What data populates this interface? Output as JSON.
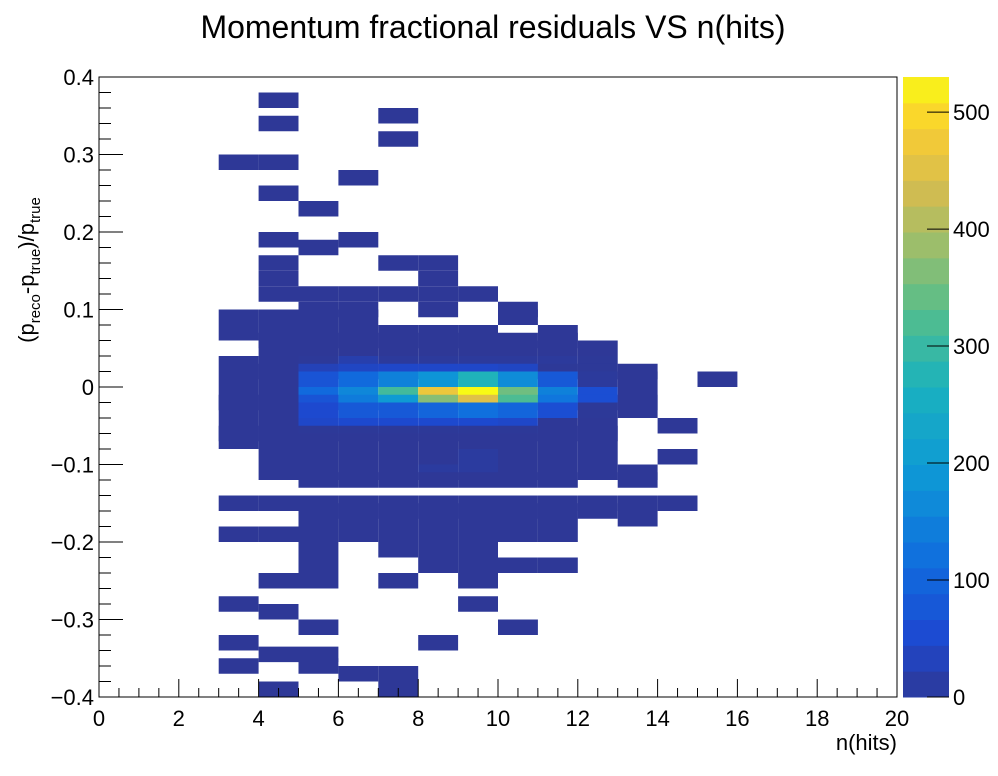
{
  "chart_data": {
    "type": "heatmap",
    "title": "Momentum fractional residuals VS n(hits)",
    "xlabel": "n(hits)",
    "ylabel": {
      "open": "(p",
      "sub1": "reco",
      "mid1": "-p",
      "sub2": "true",
      "mid2": ")/p",
      "sub3": "true"
    },
    "xlim": [
      0,
      20
    ],
    "ylim": [
      -0.4,
      0.4
    ],
    "x_bin_width": 1,
    "y_bin_width": 0.02,
    "x_ticks": [
      "0",
      "2",
      "4",
      "6",
      "8",
      "10",
      "12",
      "14",
      "16",
      "18",
      "20"
    ],
    "y_ticks": [
      "0.4",
      "0.3",
      "0.2",
      "0.1",
      "0",
      "−0.1",
      "−0.2",
      "−0.3",
      "−0.4"
    ],
    "colorbar": {
      "min": 0,
      "max": 530,
      "ticks": [
        "0",
        "100",
        "200",
        "300",
        "400",
        "500"
      ]
    },
    "bins": [
      [
        4,
        0.37,
        1
      ],
      [
        4,
        0.34,
        1
      ],
      [
        7,
        0.35,
        1
      ],
      [
        7,
        0.32,
        1
      ],
      [
        3,
        0.29,
        1
      ],
      [
        4,
        0.29,
        1
      ],
      [
        6,
        0.27,
        1
      ],
      [
        4,
        0.25,
        1
      ],
      [
        5,
        0.23,
        1
      ],
      [
        4,
        0.19,
        1
      ],
      [
        6,
        0.19,
        1
      ],
      [
        5,
        0.18,
        1
      ],
      [
        4,
        0.16,
        1
      ],
      [
        7,
        0.16,
        1
      ],
      [
        8,
        0.16,
        1
      ],
      [
        4,
        0.14,
        1
      ],
      [
        8,
        0.14,
        1
      ],
      [
        4,
        0.12,
        1
      ],
      [
        5,
        0.12,
        1
      ],
      [
        6,
        0.12,
        1
      ],
      [
        7,
        0.12,
        1
      ],
      [
        8,
        0.12,
        1
      ],
      [
        9,
        0.12,
        1
      ],
      [
        5,
        0.1,
        1
      ],
      [
        6,
        0.1,
        1
      ],
      [
        8,
        0.1,
        1
      ],
      [
        10,
        0.1,
        1
      ],
      [
        3,
        0.09,
        1
      ],
      [
        4,
        0.09,
        1
      ],
      [
        5,
        0.09,
        1
      ],
      [
        6,
        0.09,
        1
      ],
      [
        10,
        0.09,
        1
      ],
      [
        3,
        0.07,
        1
      ],
      [
        4,
        0.07,
        1
      ],
      [
        5,
        0.07,
        1
      ],
      [
        6,
        0.07,
        1
      ],
      [
        7,
        0.07,
        1
      ],
      [
        8,
        0.07,
        1
      ],
      [
        9,
        0.07,
        1
      ],
      [
        11,
        0.07,
        1
      ],
      [
        4,
        0.06,
        1
      ],
      [
        5,
        0.06,
        1
      ],
      [
        6,
        0.06,
        1
      ],
      [
        7,
        0.06,
        1
      ],
      [
        8,
        0.06,
        1
      ],
      [
        9,
        0.06,
        1
      ],
      [
        10,
        0.06,
        1
      ],
      [
        11,
        0.06,
        1
      ],
      [
        4,
        0.05,
        1
      ],
      [
        5,
        0.05,
        1
      ],
      [
        6,
        0.05,
        1
      ],
      [
        7,
        0.05,
        1
      ],
      [
        8,
        0.05,
        1
      ],
      [
        9,
        0.05,
        1
      ],
      [
        10,
        0.05,
        1
      ],
      [
        11,
        0.05,
        1
      ],
      [
        12,
        0.05,
        1
      ],
      [
        3,
        0.03,
        1
      ],
      [
        4,
        0.03,
        1
      ],
      [
        5,
        0.03,
        3
      ],
      [
        6,
        0.03,
        20
      ],
      [
        7,
        0.03,
        5
      ],
      [
        8,
        0.03,
        5
      ],
      [
        9,
        0.03,
        5
      ],
      [
        10,
        0.03,
        5
      ],
      [
        11,
        0.03,
        5
      ],
      [
        12,
        0.03,
        2
      ],
      [
        4,
        0.02,
        1
      ],
      [
        5,
        0.02,
        30
      ],
      [
        6,
        0.02,
        40
      ],
      [
        7,
        0.02,
        45
      ],
      [
        8,
        0.02,
        45
      ],
      [
        9,
        0.02,
        45
      ],
      [
        10,
        0.02,
        40
      ],
      [
        11,
        0.02,
        2
      ],
      [
        12,
        0.02,
        2
      ],
      [
        13,
        0.02,
        1
      ],
      [
        3,
        0.01,
        1
      ],
      [
        4,
        0.01,
        1
      ],
      [
        5,
        0.01,
        70
      ],
      [
        6,
        0.01,
        110
      ],
      [
        7,
        0.01,
        150
      ],
      [
        8,
        0.01,
        185
      ],
      [
        9,
        0.01,
        270
      ],
      [
        10,
        0.01,
        170
      ],
      [
        11,
        0.01,
        80
      ],
      [
        12,
        0.01,
        5
      ],
      [
        13,
        0.01,
        1
      ],
      [
        15,
        0.01,
        1
      ],
      [
        3,
        -0.01,
        1
      ],
      [
        4,
        -0.01,
        1
      ],
      [
        5,
        -0.01,
        110
      ],
      [
        6,
        -0.01,
        160
      ],
      [
        7,
        -0.01,
        310
      ],
      [
        8,
        -0.01,
        470
      ],
      [
        9,
        -0.01,
        530
      ],
      [
        10,
        -0.01,
        350
      ],
      [
        11,
        -0.01,
        150
      ],
      [
        12,
        -0.01,
        60
      ],
      [
        13,
        -0.01,
        1
      ],
      [
        3,
        -0.02,
        1
      ],
      [
        4,
        -0.02,
        1
      ],
      [
        5,
        -0.02,
        70
      ],
      [
        6,
        -0.02,
        140
      ],
      [
        7,
        -0.02,
        200
      ],
      [
        8,
        -0.02,
        370
      ],
      [
        9,
        -0.02,
        450
      ],
      [
        10,
        -0.02,
        320
      ],
      [
        11,
        -0.02,
        130
      ],
      [
        12,
        -0.02,
        60
      ],
      [
        13,
        -0.02,
        1
      ],
      [
        3,
        -0.03,
        1
      ],
      [
        4,
        -0.03,
        1
      ],
      [
        5,
        -0.03,
        50
      ],
      [
        6,
        -0.03,
        80
      ],
      [
        7,
        -0.03,
        80
      ],
      [
        8,
        -0.03,
        100
      ],
      [
        9,
        -0.03,
        120
      ],
      [
        10,
        -0.03,
        100
      ],
      [
        11,
        -0.03,
        60
      ],
      [
        12,
        -0.03,
        2
      ],
      [
        13,
        -0.03,
        1
      ],
      [
        3,
        -0.05,
        1
      ],
      [
        4,
        -0.05,
        1
      ],
      [
        5,
        -0.05,
        45
      ],
      [
        6,
        -0.05,
        50
      ],
      [
        7,
        -0.05,
        50
      ],
      [
        8,
        -0.05,
        50
      ],
      [
        9,
        -0.05,
        50
      ],
      [
        10,
        -0.05,
        45
      ],
      [
        11,
        -0.05,
        1
      ],
      [
        12,
        -0.05,
        1
      ],
      [
        14,
        -0.05,
        1
      ],
      [
        3,
        -0.06,
        1
      ],
      [
        4,
        -0.06,
        1
      ],
      [
        5,
        -0.06,
        2
      ],
      [
        6,
        -0.06,
        2
      ],
      [
        7,
        -0.06,
        2
      ],
      [
        8,
        -0.06,
        2
      ],
      [
        9,
        -0.06,
        2
      ],
      [
        10,
        -0.06,
        2
      ],
      [
        11,
        -0.06,
        1
      ],
      [
        12,
        -0.06,
        1
      ],
      [
        3,
        -0.07,
        1
      ],
      [
        4,
        -0.07,
        1
      ],
      [
        5,
        -0.07,
        1
      ],
      [
        6,
        -0.07,
        1
      ],
      [
        7,
        -0.07,
        1
      ],
      [
        8,
        -0.07,
        1
      ],
      [
        9,
        -0.07,
        1
      ],
      [
        10,
        -0.07,
        1
      ],
      [
        11,
        -0.07,
        1
      ],
      [
        12,
        -0.07,
        1
      ],
      [
        4,
        -0.09,
        1
      ],
      [
        5,
        -0.09,
        1
      ],
      [
        6,
        -0.09,
        1
      ],
      [
        7,
        -0.09,
        1
      ],
      [
        8,
        -0.09,
        1
      ],
      [
        9,
        -0.09,
        8
      ],
      [
        10,
        -0.09,
        1
      ],
      [
        11,
        -0.09,
        1
      ],
      [
        12,
        -0.09,
        1
      ],
      [
        14,
        -0.09,
        1
      ],
      [
        4,
        -0.11,
        1
      ],
      [
        5,
        -0.11,
        1
      ],
      [
        6,
        -0.11,
        1
      ],
      [
        7,
        -0.11,
        1
      ],
      [
        8,
        -0.11,
        8
      ],
      [
        9,
        -0.11,
        8
      ],
      [
        10,
        -0.11,
        1
      ],
      [
        11,
        -0.11,
        1
      ],
      [
        12,
        -0.11,
        1
      ],
      [
        13,
        -0.11,
        1
      ],
      [
        5,
        -0.12,
        1
      ],
      [
        6,
        -0.12,
        1
      ],
      [
        7,
        -0.12,
        1
      ],
      [
        8,
        -0.12,
        1
      ],
      [
        9,
        -0.12,
        1
      ],
      [
        10,
        -0.12,
        1
      ],
      [
        11,
        -0.12,
        1
      ],
      [
        13,
        -0.12,
        1
      ],
      [
        3,
        -0.15,
        1
      ],
      [
        4,
        -0.15,
        1
      ],
      [
        5,
        -0.15,
        1
      ],
      [
        6,
        -0.15,
        1
      ],
      [
        7,
        -0.15,
        1
      ],
      [
        8,
        -0.15,
        1
      ],
      [
        9,
        -0.15,
        1
      ],
      [
        10,
        -0.15,
        1
      ],
      [
        11,
        -0.15,
        1
      ],
      [
        12,
        -0.15,
        1
      ],
      [
        13,
        -0.15,
        1
      ],
      [
        14,
        -0.15,
        1
      ],
      [
        5,
        -0.16,
        1
      ],
      [
        6,
        -0.16,
        1
      ],
      [
        7,
        -0.16,
        1
      ],
      [
        8,
        -0.16,
        1
      ],
      [
        9,
        -0.16,
        1
      ],
      [
        10,
        -0.16,
        1
      ],
      [
        11,
        -0.16,
        1
      ],
      [
        12,
        -0.16,
        1
      ],
      [
        5,
        -0.17,
        1
      ],
      [
        6,
        -0.17,
        1
      ],
      [
        7,
        -0.17,
        1
      ],
      [
        8,
        -0.17,
        1
      ],
      [
        9,
        -0.17,
        1
      ],
      [
        10,
        -0.17,
        1
      ],
      [
        11,
        -0.17,
        1
      ],
      [
        13,
        -0.17,
        1
      ],
      [
        3,
        -0.19,
        1
      ],
      [
        4,
        -0.19,
        1
      ],
      [
        5,
        -0.19,
        1
      ],
      [
        6,
        -0.19,
        1
      ],
      [
        7,
        -0.19,
        1
      ],
      [
        8,
        -0.19,
        1
      ],
      [
        9,
        -0.19,
        1
      ],
      [
        10,
        -0.19,
        1
      ],
      [
        11,
        -0.19,
        1
      ],
      [
        5,
        -0.21,
        1
      ],
      [
        7,
        -0.21,
        1
      ],
      [
        8,
        -0.21,
        1
      ],
      [
        9,
        -0.21,
        1
      ],
      [
        5,
        -0.23,
        1
      ],
      [
        8,
        -0.23,
        1
      ],
      [
        9,
        -0.23,
        1
      ],
      [
        10,
        -0.23,
        1
      ],
      [
        11,
        -0.23,
        1
      ],
      [
        4,
        -0.25,
        1
      ],
      [
        5,
        -0.25,
        1
      ],
      [
        7,
        -0.25,
        1
      ],
      [
        9,
        -0.25,
        1
      ],
      [
        3,
        -0.28,
        1
      ],
      [
        9,
        -0.28,
        1
      ],
      [
        4,
        -0.29,
        1
      ],
      [
        5,
        -0.31,
        1
      ],
      [
        10,
        -0.31,
        1
      ],
      [
        3,
        -0.33,
        1
      ],
      [
        8,
        -0.33,
        1
      ],
      [
        4,
        -0.345,
        1
      ],
      [
        5,
        -0.345,
        1
      ],
      [
        3,
        -0.36,
        1
      ],
      [
        5,
        -0.36,
        1
      ],
      [
        6,
        -0.37,
        1
      ],
      [
        7,
        -0.37,
        1
      ],
      [
        4,
        -0.39,
        1
      ],
      [
        7,
        -0.39,
        1
      ]
    ]
  }
}
